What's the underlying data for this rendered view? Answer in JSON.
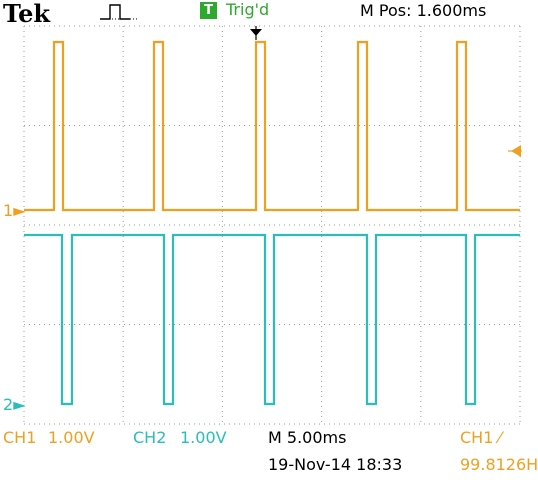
{
  "header": {
    "brand": "Tek",
    "trigger_badge": "T",
    "trigger_status": "Trig'd",
    "position": "M Pos: 1.600ms"
  },
  "markers": {
    "ch1": "1",
    "ch2": "2"
  },
  "footer": {
    "ch1_label": "CH1",
    "ch1_scale": "1.00V",
    "ch2_label": "CH2",
    "ch2_scale": "1.00V",
    "timebase": "M 5.00ms",
    "trigger_source": "CH1",
    "datetime": "19-Nov-14 18:33",
    "frequency": "99.8126H"
  },
  "colors": {
    "ch1": "#f0a020",
    "ch2": "#2bbcbc",
    "trig": "#2fa82f"
  }
}
